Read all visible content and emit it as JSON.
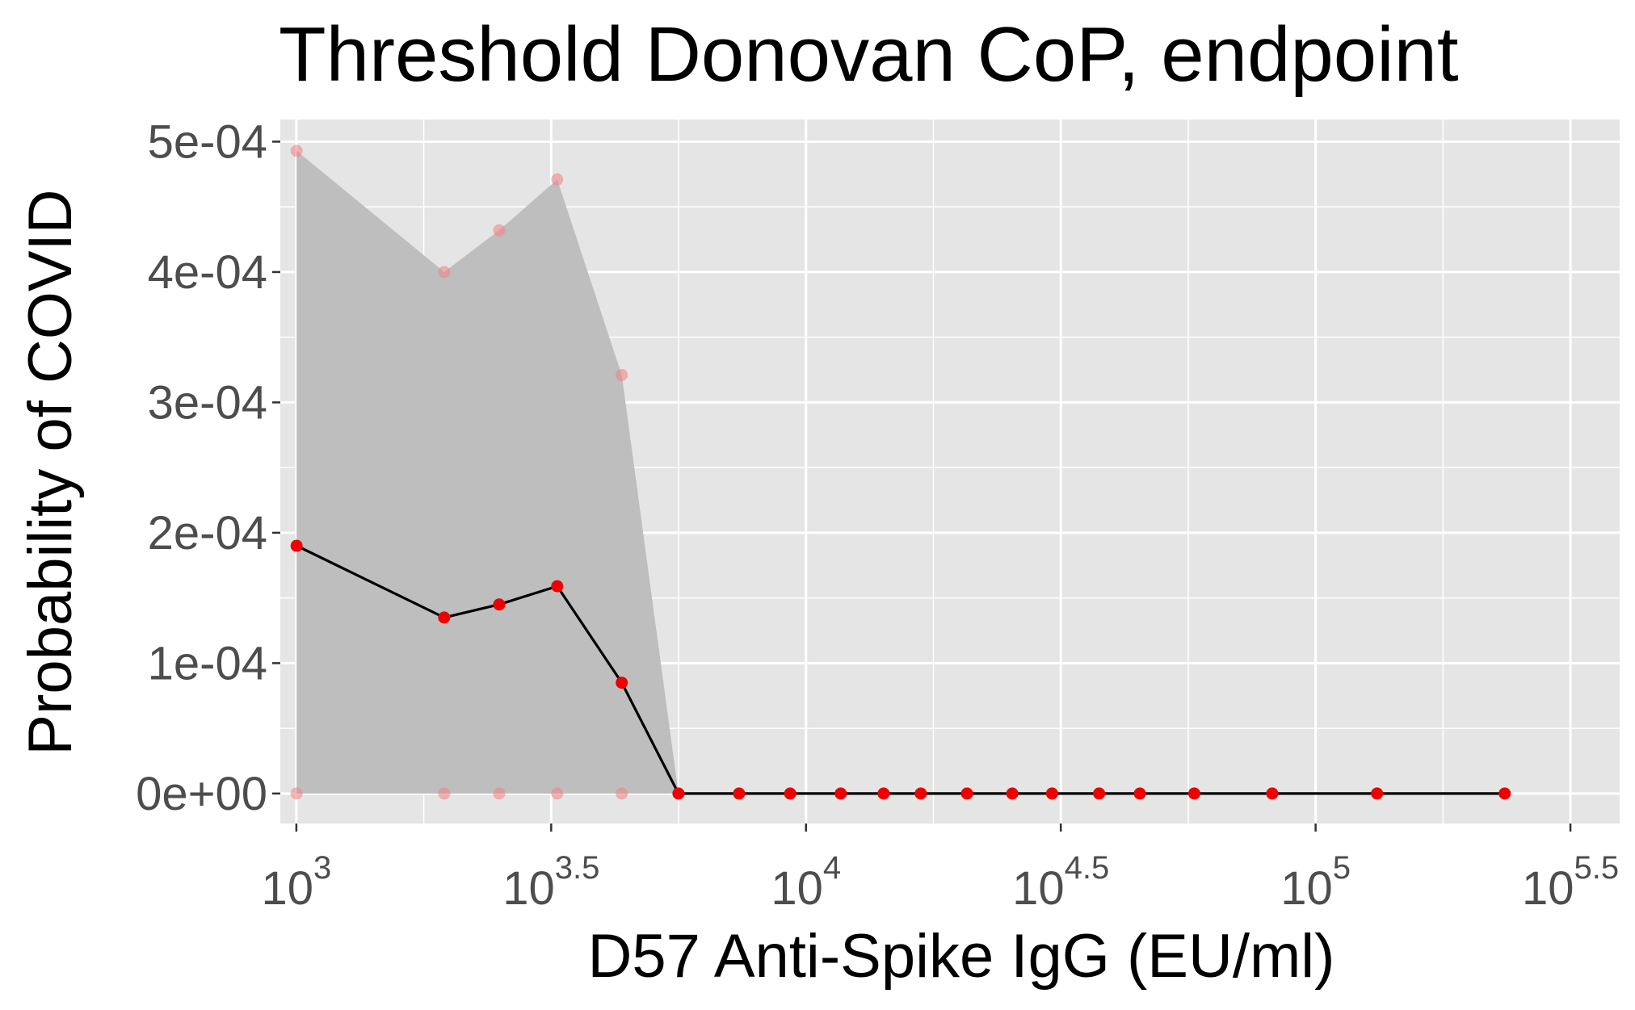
{
  "chart_data": {
    "type": "line",
    "title": "Threshold Donovan CoP, endpoint",
    "xlabel": "D57 Anti-Spike IgG (EU/ml)",
    "ylabel": "Probability of COVID",
    "x_scale": "log10",
    "xlim": [
      930,
      395000
    ],
    "ylim": [
      -2.3e-05,
      0.000517
    ],
    "x_ticks": [
      {
        "base": "10",
        "exp": "3"
      },
      {
        "base": "10",
        "exp": "3.5"
      },
      {
        "base": "10",
        "exp": "4"
      },
      {
        "base": "10",
        "exp": "4.5"
      },
      {
        "base": "10",
        "exp": "5"
      },
      {
        "base": "10",
        "exp": "5.5"
      }
    ],
    "y_ticks": [
      {
        "value": 0,
        "label": "0e+00"
      },
      {
        "value": 0.0001,
        "label": "1e-04"
      },
      {
        "value": 0.0002,
        "label": "2e-04"
      },
      {
        "value": 0.0003,
        "label": "3e-04"
      },
      {
        "value": 0.0004,
        "label": "4e-04"
      },
      {
        "value": 0.0005,
        "label": "5e-04"
      }
    ],
    "grid": true,
    "colors": {
      "panel": "#e5e5e5",
      "grid": "#ffffff",
      "ribbon": "#bebebe",
      "line": "#000000",
      "point": "#ee0000",
      "bound_point": "#f08080"
    },
    "series": [
      {
        "x": [
          1001,
          1950,
          2500,
          3250,
          4350,
          5620,
          7390,
          9310,
          11700,
          14200,
          16800,
          20700,
          25400,
          30400,
          37600,
          45200,
          57800,
          82200,
          132000,
          235000
        ],
        "y": [
          0.00019,
          0.000135,
          0.000145,
          0.000159,
          8.5e-05,
          0,
          0,
          0,
          0,
          0,
          0,
          0,
          0,
          0,
          0,
          0,
          0,
          0,
          0,
          0
        ],
        "upper": [
          0.000493,
          0.0004,
          0.000432,
          0.000471,
          0.000321,
          0,
          0,
          0,
          0,
          0,
          0,
          0,
          0,
          0,
          0,
          0,
          0,
          0,
          0,
          0
        ],
        "lower": [
          0,
          0,
          0,
          0,
          0,
          0,
          0,
          0,
          0,
          0,
          0,
          0,
          0,
          0,
          0,
          0,
          0,
          0,
          0,
          0
        ]
      }
    ]
  }
}
